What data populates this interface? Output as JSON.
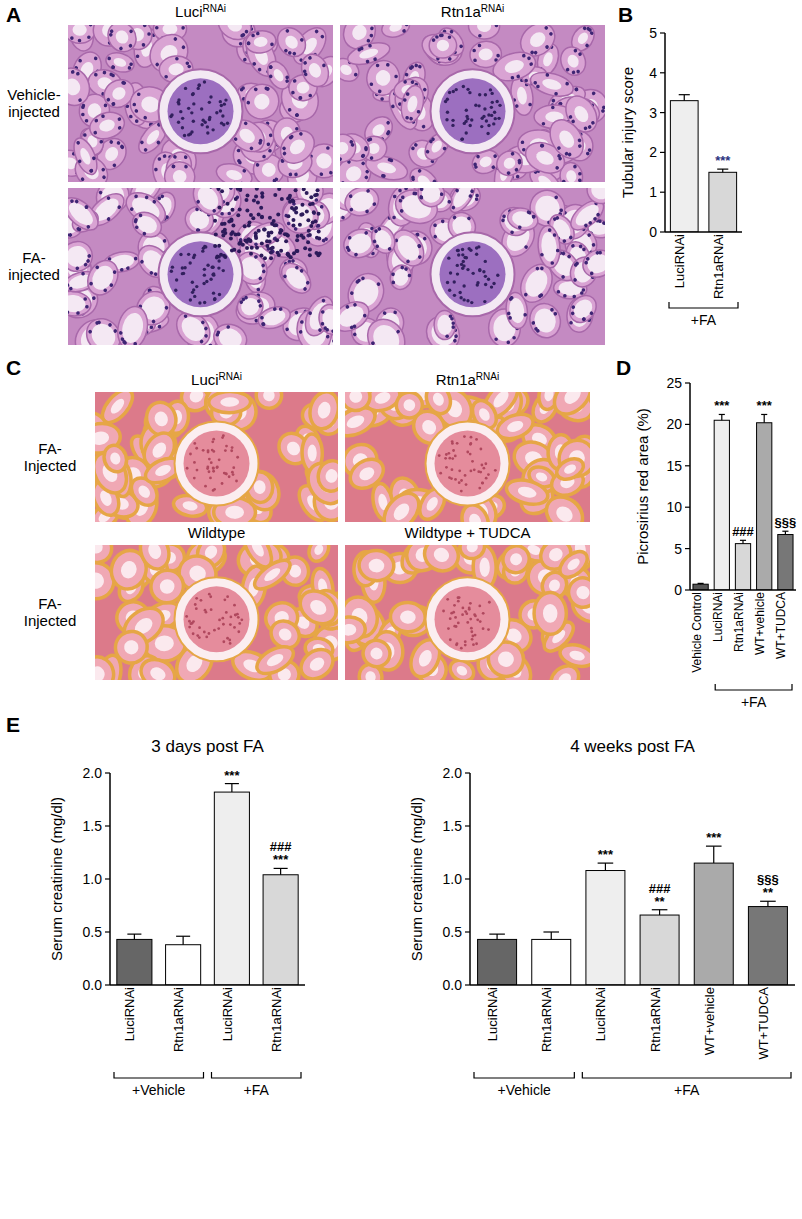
{
  "panel_A": {
    "letter": "A",
    "columns": [
      {
        "text": "Luci",
        "sup": "RNAi"
      },
      {
        "text": "Rtn1a",
        "sup": "RNAi"
      }
    ],
    "rows": [
      [
        "Vehicle-",
        "injected"
      ],
      [
        "FA-",
        "injected"
      ]
    ]
  },
  "panel_B": {
    "letter": "B"
  },
  "panel_C": {
    "letter": "C",
    "images": [
      {
        "text": "Luci",
        "sup": "RNAi"
      },
      {
        "text": "Rtn1a",
        "sup": "RNAi"
      },
      {
        "text": "Wildtype"
      },
      {
        "text": "Wildtype + TUDCA"
      }
    ],
    "rows": [
      [
        "FA-",
        "Injected"
      ],
      [
        "FA-",
        "Injected"
      ]
    ]
  },
  "panel_D": {
    "letter": "D"
  },
  "panel_E": {
    "letter": "E"
  },
  "chart_data": [
    {
      "type": "bar",
      "y_label": "Tubular injury score",
      "categories": [
        "LuciRNAi",
        "Rtn1aRNAi"
      ],
      "values": [
        3.3,
        1.5
      ],
      "errors": [
        0.15,
        0.08
      ],
      "annotations": [
        null,
        [
          "***"
        ]
      ],
      "colors": [
        "#eeeeee",
        "#d8d8d8"
      ],
      "groups": [
        {
          "label": "+FA",
          "start": 0,
          "end": 1
        }
      ],
      "ylim": [
        0,
        5
      ],
      "yticks": [
        0,
        1,
        2,
        3,
        4,
        5
      ],
      "grid": false
    },
    {
      "type": "bar",
      "y_label": "Picrosirius red area (%)",
      "categories": [
        "Vehicle Control",
        "LuciRNAi",
        "Rtn1aRNAi",
        "WT+vehicle",
        "WT+TUDCA"
      ],
      "values": [
        0.7,
        20.5,
        5.6,
        20.2,
        6.7
      ],
      "errors": [
        0.1,
        0.7,
        0.4,
        1.0,
        0.4
      ],
      "annotations": [
        null,
        [
          "***"
        ],
        [
          "###"
        ],
        [
          "***"
        ],
        [
          "§§§"
        ]
      ],
      "colors": [
        "#555555",
        "#eeeeee",
        "#d8d8d8",
        "#aaaaaa",
        "#777777"
      ],
      "groups": [
        {
          "label": "+FA",
          "start": 1,
          "end": 4
        }
      ],
      "ylim": [
        0,
        25
      ],
      "yticks": [
        0,
        5,
        10,
        15,
        20,
        25
      ],
      "grid": false
    },
    {
      "type": "bar",
      "title": "3 days post FA",
      "y_label": "Serum creatinine (mg/dl)",
      "categories": [
        "LuciRNAi",
        "Rtn1aRNAi",
        "LuciRNAi",
        "Rtn1aRNAi"
      ],
      "values": [
        0.43,
        0.38,
        1.82,
        1.04
      ],
      "errors": [
        0.05,
        0.08,
        0.08,
        0.06
      ],
      "annotations": [
        null,
        null,
        [
          "***"
        ],
        [
          "###",
          "***"
        ]
      ],
      "colors": [
        "#666666",
        "#ffffff",
        "#eeeeee",
        "#d8d8d8"
      ],
      "groups": [
        {
          "label": "+Vehicle",
          "start": 0,
          "end": 1
        },
        {
          "label": "+FA",
          "start": 2,
          "end": 3
        }
      ],
      "ylim": [
        0,
        2
      ],
      "yticks": [
        {
          "value": 0,
          "label": "0.0"
        },
        {
          "value": 0.5,
          "label": "0.5"
        },
        {
          "value": 1,
          "label": "1.0"
        },
        {
          "value": 1.5,
          "label": "1.5"
        },
        {
          "value": 2,
          "label": "2.0"
        }
      ],
      "grid": false
    },
    {
      "type": "bar",
      "title": "4 weeks post FA",
      "y_label": "Serum creatinine (mg/dl)",
      "categories": [
        "LuciRNAi",
        "Rtn1aRNAi",
        "LuciRNAi",
        "Rtn1aRNAi",
        "WT+vehicle",
        "WT+TUDCA"
      ],
      "values": [
        0.43,
        0.43,
        1.08,
        0.66,
        1.15,
        0.74
      ],
      "errors": [
        0.05,
        0.07,
        0.07,
        0.05,
        0.16,
        0.05
      ],
      "annotations": [
        null,
        null,
        [
          "***"
        ],
        [
          "###",
          "**"
        ],
        [
          "***"
        ],
        [
          "§§§",
          "**"
        ]
      ],
      "colors": [
        "#666666",
        "#ffffff",
        "#eeeeee",
        "#d8d8d8",
        "#aaaaaa",
        "#777777"
      ],
      "groups": [
        {
          "label": "+Vehicle",
          "start": 0,
          "end": 1
        },
        {
          "label": "+FA",
          "start": 2,
          "end": 5
        }
      ],
      "ylim": [
        0,
        2
      ],
      "yticks": [
        {
          "value": 0,
          "label": "0.0"
        },
        {
          "value": 0.5,
          "label": "0.5"
        },
        {
          "value": 1,
          "label": "1.0"
        },
        {
          "value": 1.5,
          "label": "1.5"
        },
        {
          "value": 2,
          "label": "2.0"
        }
      ],
      "grid": false
    }
  ]
}
